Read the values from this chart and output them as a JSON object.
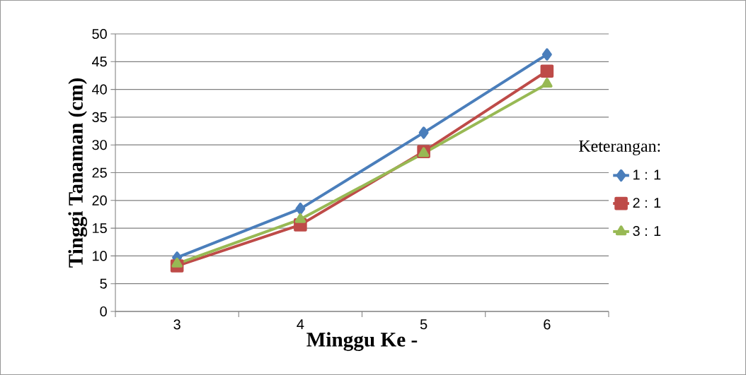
{
  "chart_data": {
    "type": "line",
    "xlabel": "Minggu Ke -",
    "ylabel": "Tinggi Tanaman (cm)",
    "legend_title": "Keterangan:",
    "categories": [
      "3",
      "4",
      "5",
      "6"
    ],
    "series": [
      {
        "name": "1 : 1",
        "color": "#4a7ebb",
        "marker": "diamond",
        "values": [
          9.7,
          18.5,
          32.2,
          46.3
        ]
      },
      {
        "name": "2 : 1",
        "color": "#be4b48",
        "marker": "square",
        "values": [
          8.2,
          15.6,
          28.8,
          43.3
        ]
      },
      {
        "name": "3 : 1",
        "color": "#98b954",
        "marker": "triangle",
        "values": [
          8.6,
          16.6,
          28.5,
          41.0
        ]
      }
    ],
    "ylim": [
      0,
      50
    ],
    "yticks": [
      0,
      5,
      10,
      15,
      20,
      25,
      30,
      35,
      40,
      45,
      50
    ],
    "grid": "y",
    "legend": "right",
    "line_style": "solid"
  }
}
